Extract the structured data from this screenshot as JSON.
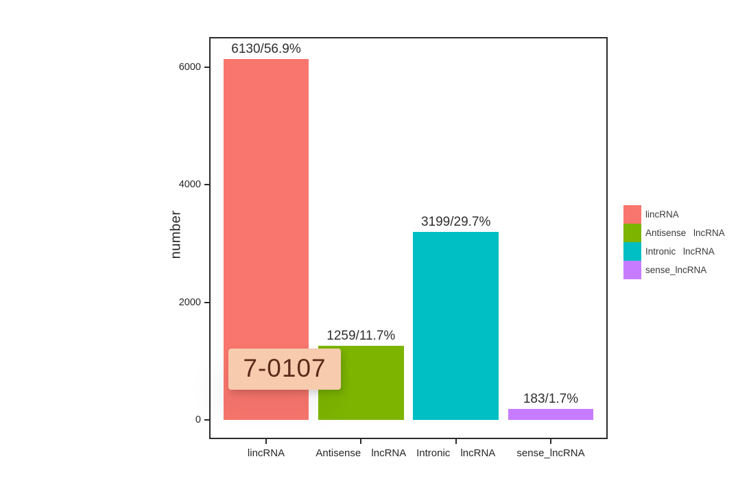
{
  "chart_data": {
    "type": "bar",
    "title": "",
    "categories": [
      "lincRNA",
      "Antisense lncRNA",
      "Intronic lncRNA",
      "sense_lncRNA"
    ],
    "values": [
      6130,
      1259,
      3199,
      183
    ],
    "bar_labels": [
      "6130/56.9%",
      "1259/11.7%",
      "3199/29.7%",
      "183/1.7%"
    ],
    "bar_colors": [
      "#F8766D",
      "#7CB400",
      "#00BFC4",
      "#C77CFF"
    ],
    "xlabel": "",
    "ylabel": "number",
    "yticks": [
      0,
      2000,
      4000,
      6000
    ],
    "ylim": [
      0,
      6500
    ],
    "grid": false,
    "legend": {
      "position": "right",
      "entries": [
        {
          "label": "lincRNA",
          "color": "#F8766D"
        },
        {
          "label": "Antisense lncRNA",
          "color": "#7CB400"
        },
        {
          "label": "Intronic lncRNA",
          "color": "#00BFC4"
        },
        {
          "label": "sense_lncRNA",
          "color": "#C77CFF"
        }
      ]
    }
  },
  "overlay": {
    "text": "7-0107",
    "background": "#F7CBAE",
    "text_color": "#5C2A1A"
  }
}
